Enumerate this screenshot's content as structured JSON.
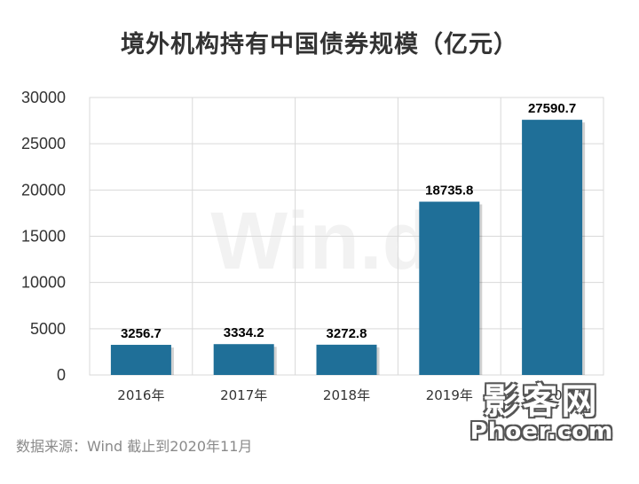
{
  "chart_data": {
    "type": "bar",
    "title": "境外机构持有中国债券规模（亿元）",
    "categories": [
      "2016年",
      "2017年",
      "2018年",
      "2019年",
      "2020年"
    ],
    "values": [
      3256.7,
      3334.2,
      3272.8,
      18735.8,
      27590.7
    ],
    "data_labels": [
      "3256.7",
      "3334.2",
      "3272.8",
      "18735.8",
      "27590.7"
    ],
    "ylim": [
      0,
      30000
    ],
    "yticks": [
      "0",
      "5000",
      "10000",
      "15000",
      "20000",
      "25000",
      "30000"
    ],
    "xlabel": "",
    "ylabel": "",
    "grid": true,
    "bar_color": "#1f6f98"
  },
  "footer": {
    "source": "数据来源：Wind    截止到2020年11月"
  },
  "watermark": {
    "background_text": "Win.d",
    "site_logo": "影客网",
    "site_domain": "Phoer.com"
  }
}
